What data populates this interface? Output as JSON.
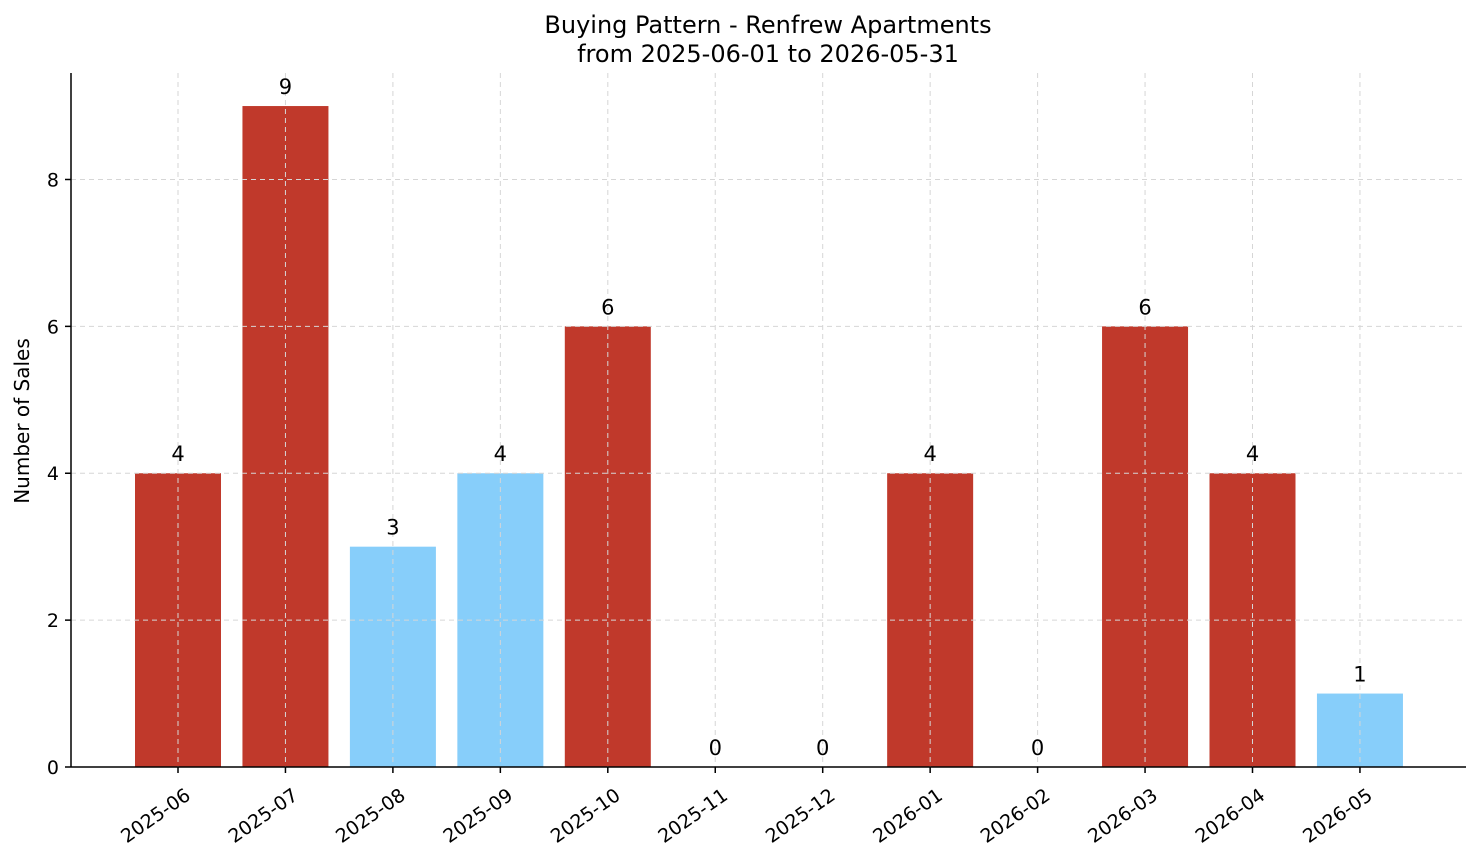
{
  "chart_data": {
    "type": "bar",
    "title_line1": "Buying Pattern - Renfrew Apartments",
    "title_line2": "from 2025-06-01 to 2026-05-31",
    "xlabel": "",
    "ylabel": "Number of Sales",
    "categories": [
      "2025-06",
      "2025-07",
      "2025-08",
      "2025-09",
      "2025-10",
      "2025-11",
      "2025-12",
      "2026-01",
      "2026-02",
      "2026-03",
      "2026-04",
      "2026-05"
    ],
    "values": [
      4,
      9,
      3,
      4,
      6,
      0,
      0,
      4,
      0,
      6,
      4,
      1
    ],
    "bar_colors": [
      "#c0392b",
      "#c0392b",
      "#87cefa",
      "#87cefa",
      "#c0392b",
      "#c0392b",
      "#c0392b",
      "#c0392b",
      "#c0392b",
      "#c0392b",
      "#c0392b",
      "#87cefa"
    ],
    "yticks": [
      0,
      2,
      4,
      6,
      8
    ],
    "ylim": [
      0,
      9.45
    ],
    "grid": true,
    "legend": "none"
  }
}
